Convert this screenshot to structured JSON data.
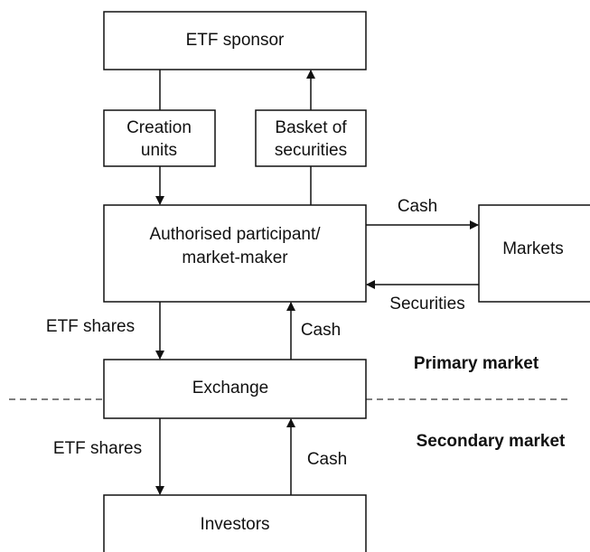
{
  "nodes": [
    {
      "lines": [
        "ETF sponsor"
      ]
    },
    {
      "lines": [
        "Creation",
        "units"
      ]
    },
    {
      "lines": [
        "Basket of",
        "securities"
      ]
    },
    {
      "lines": [
        "Authorised participant/",
        "market-maker"
      ]
    },
    {
      "lines": [
        "Markets"
      ]
    },
    {
      "lines": [
        "Exchange"
      ]
    },
    {
      "lines": [
        "Investors"
      ]
    }
  ],
  "edges": [
    {
      "label": "Cash"
    },
    {
      "label": "Securities"
    },
    {
      "label": "ETF shares"
    },
    {
      "label": "Cash"
    },
    {
      "label": "ETF shares"
    },
    {
      "label": "Cash"
    }
  ],
  "regions": [
    {
      "label": "Primary market"
    },
    {
      "label": "Secondary market"
    }
  ]
}
